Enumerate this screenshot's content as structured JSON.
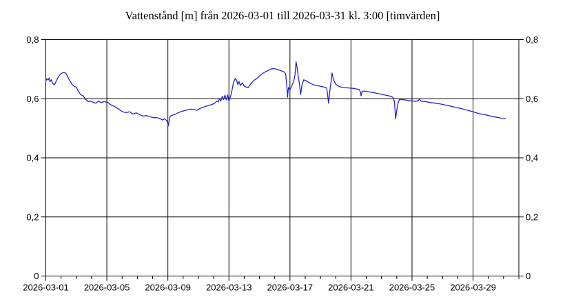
{
  "chart_data": {
    "type": "line",
    "title": "Vattenstånd [m] från 2026-03-01 till 2026-03-31 kl. 3:00 [timvärden]",
    "xlabel": "",
    "ylabel": "",
    "unit": "m",
    "x_start_date": "2026-03-01",
    "x_end_date": "2026-04-01",
    "x_days_span": 31,
    "x_minor_tick_interval_days": 1,
    "x_major_tick_days": [
      0,
      4,
      8,
      12,
      16,
      20,
      24,
      28
    ],
    "x_major_tick_labels": [
      "2026-03-01",
      "2026-03-05",
      "2026-03-09",
      "2026-03-13",
      "2026-03-17",
      "2026-03-21",
      "2026-03-25",
      "2026-03-29"
    ],
    "y_ticks": [
      0,
      0.2,
      0.4,
      0.6,
      0.8
    ],
    "y_tick_labels": [
      "0",
      "0,2",
      "0,4",
      "0,6",
      "0,8"
    ],
    "ylim": [
      0,
      0.8
    ],
    "grid": true,
    "legend": "none",
    "line_color": "#2222cc",
    "axis_color": "#000000",
    "background_color": "#ffffff",
    "series": [
      {
        "name": "Vattenstånd [m]",
        "points": [
          [
            0.0,
            0.66
          ],
          [
            0.08,
            0.668
          ],
          [
            0.15,
            0.663
          ],
          [
            0.22,
            0.67
          ],
          [
            0.28,
            0.658
          ],
          [
            0.35,
            0.664
          ],
          [
            0.45,
            0.652
          ],
          [
            0.57,
            0.647
          ],
          [
            0.7,
            0.662
          ],
          [
            0.8,
            0.672
          ],
          [
            0.95,
            0.683
          ],
          [
            1.1,
            0.688
          ],
          [
            1.3,
            0.687
          ],
          [
            1.42,
            0.676
          ],
          [
            1.55,
            0.663
          ],
          [
            1.7,
            0.65
          ],
          [
            1.85,
            0.642
          ],
          [
            2.0,
            0.639
          ],
          [
            2.15,
            0.624
          ],
          [
            2.3,
            0.613
          ],
          [
            2.45,
            0.61
          ],
          [
            2.6,
            0.598
          ],
          [
            2.78,
            0.59
          ],
          [
            2.95,
            0.592
          ],
          [
            3.12,
            0.587
          ],
          [
            3.28,
            0.585
          ],
          [
            3.45,
            0.592
          ],
          [
            3.62,
            0.587
          ],
          [
            3.8,
            0.59
          ],
          [
            4.05,
            0.588
          ],
          [
            4.22,
            0.581
          ],
          [
            4.4,
            0.576
          ],
          [
            4.6,
            0.571
          ],
          [
            4.8,
            0.564
          ],
          [
            5.02,
            0.556
          ],
          [
            5.25,
            0.553
          ],
          [
            5.48,
            0.556
          ],
          [
            5.7,
            0.548
          ],
          [
            5.93,
            0.552
          ],
          [
            6.15,
            0.546
          ],
          [
            6.38,
            0.541
          ],
          [
            6.6,
            0.543
          ],
          [
            6.83,
            0.539
          ],
          [
            7.05,
            0.536
          ],
          [
            7.28,
            0.536
          ],
          [
            7.47,
            0.533
          ],
          [
            7.65,
            0.528
          ],
          [
            7.78,
            0.532
          ],
          [
            7.92,
            0.526
          ],
          [
            7.98,
            0.52
          ],
          [
            8.03,
            0.508
          ],
          [
            8.1,
            0.53
          ],
          [
            8.15,
            0.541
          ],
          [
            8.3,
            0.544
          ],
          [
            8.45,
            0.547
          ],
          [
            8.65,
            0.552
          ],
          [
            8.85,
            0.556
          ],
          [
            9.05,
            0.559
          ],
          [
            9.28,
            0.562
          ],
          [
            9.5,
            0.565
          ],
          [
            9.72,
            0.563
          ],
          [
            9.9,
            0.561
          ],
          [
            10.1,
            0.567
          ],
          [
            10.3,
            0.571
          ],
          [
            10.6,
            0.576
          ],
          [
            10.85,
            0.58
          ],
          [
            11.05,
            0.584
          ],
          [
            11.2,
            0.592
          ],
          [
            11.3,
            0.589
          ],
          [
            11.38,
            0.601
          ],
          [
            11.47,
            0.592
          ],
          [
            11.56,
            0.608
          ],
          [
            11.65,
            0.597
          ],
          [
            11.74,
            0.612
          ],
          [
            11.83,
            0.596
          ],
          [
            11.92,
            0.613
          ],
          [
            12.0,
            0.592
          ],
          [
            12.08,
            0.603
          ],
          [
            12.16,
            0.618
          ],
          [
            12.3,
            0.655
          ],
          [
            12.42,
            0.669
          ],
          [
            12.52,
            0.66
          ],
          [
            12.58,
            0.648
          ],
          [
            12.66,
            0.658
          ],
          [
            12.75,
            0.645
          ],
          [
            12.88,
            0.654
          ],
          [
            13.0,
            0.643
          ],
          [
            13.12,
            0.64
          ],
          [
            13.25,
            0.637
          ],
          [
            13.42,
            0.649
          ],
          [
            13.6,
            0.661
          ],
          [
            13.82,
            0.668
          ],
          [
            14.05,
            0.679
          ],
          [
            14.28,
            0.688
          ],
          [
            14.5,
            0.694
          ],
          [
            14.72,
            0.7
          ],
          [
            14.95,
            0.702
          ],
          [
            15.18,
            0.699
          ],
          [
            15.4,
            0.695
          ],
          [
            15.62,
            0.691
          ],
          [
            15.72,
            0.684
          ],
          [
            15.8,
            0.64
          ],
          [
            15.84,
            0.605
          ],
          [
            15.9,
            0.638
          ],
          [
            16.0,
            0.63
          ],
          [
            16.13,
            0.645
          ],
          [
            16.25,
            0.66
          ],
          [
            16.33,
            0.68
          ],
          [
            16.4,
            0.725
          ],
          [
            16.48,
            0.7
          ],
          [
            16.55,
            0.672
          ],
          [
            16.62,
            0.65
          ],
          [
            16.7,
            0.614
          ],
          [
            16.78,
            0.645
          ],
          [
            16.9,
            0.664
          ],
          [
            17.05,
            0.661
          ],
          [
            17.25,
            0.655
          ],
          [
            17.5,
            0.648
          ],
          [
            17.75,
            0.645
          ],
          [
            18.0,
            0.642
          ],
          [
            18.2,
            0.64
          ],
          [
            18.4,
            0.637
          ],
          [
            18.48,
            0.61
          ],
          [
            18.53,
            0.585
          ],
          [
            18.6,
            0.62
          ],
          [
            18.7,
            0.66
          ],
          [
            18.76,
            0.687
          ],
          [
            18.85,
            0.665
          ],
          [
            19.0,
            0.649
          ],
          [
            19.2,
            0.642
          ],
          [
            19.45,
            0.638
          ],
          [
            19.7,
            0.637
          ],
          [
            19.95,
            0.636
          ],
          [
            20.15,
            0.635
          ],
          [
            20.38,
            0.633
          ],
          [
            20.55,
            0.631
          ],
          [
            20.62,
            0.622
          ],
          [
            20.66,
            0.61
          ],
          [
            20.72,
            0.624
          ],
          [
            20.85,
            0.626
          ],
          [
            21.0,
            0.625
          ],
          [
            21.2,
            0.623
          ],
          [
            21.4,
            0.621
          ],
          [
            21.65,
            0.619
          ],
          [
            21.9,
            0.616
          ],
          [
            22.1,
            0.614
          ],
          [
            22.35,
            0.611
          ],
          [
            22.55,
            0.609
          ],
          [
            22.75,
            0.605
          ],
          [
            22.85,
            0.59
          ],
          [
            22.92,
            0.532
          ],
          [
            23.0,
            0.56
          ],
          [
            23.08,
            0.585
          ],
          [
            23.18,
            0.598
          ],
          [
            23.4,
            0.597
          ],
          [
            23.65,
            0.595
          ],
          [
            23.95,
            0.593
          ],
          [
            24.2,
            0.591
          ],
          [
            24.4,
            0.593
          ],
          [
            24.48,
            0.598
          ],
          [
            24.6,
            0.592
          ],
          [
            24.9,
            0.59
          ],
          [
            25.2,
            0.587
          ],
          [
            25.5,
            0.585
          ],
          [
            25.9,
            0.582
          ],
          [
            26.25,
            0.578
          ],
          [
            26.6,
            0.574
          ],
          [
            27.0,
            0.569
          ],
          [
            27.35,
            0.565
          ],
          [
            27.7,
            0.56
          ],
          [
            28.0,
            0.556
          ],
          [
            28.3,
            0.551
          ],
          [
            28.65,
            0.547
          ],
          [
            28.95,
            0.544
          ],
          [
            29.25,
            0.54
          ],
          [
            29.6,
            0.537
          ],
          [
            29.85,
            0.534
          ],
          [
            30.12,
            0.532
          ]
        ]
      }
    ]
  }
}
